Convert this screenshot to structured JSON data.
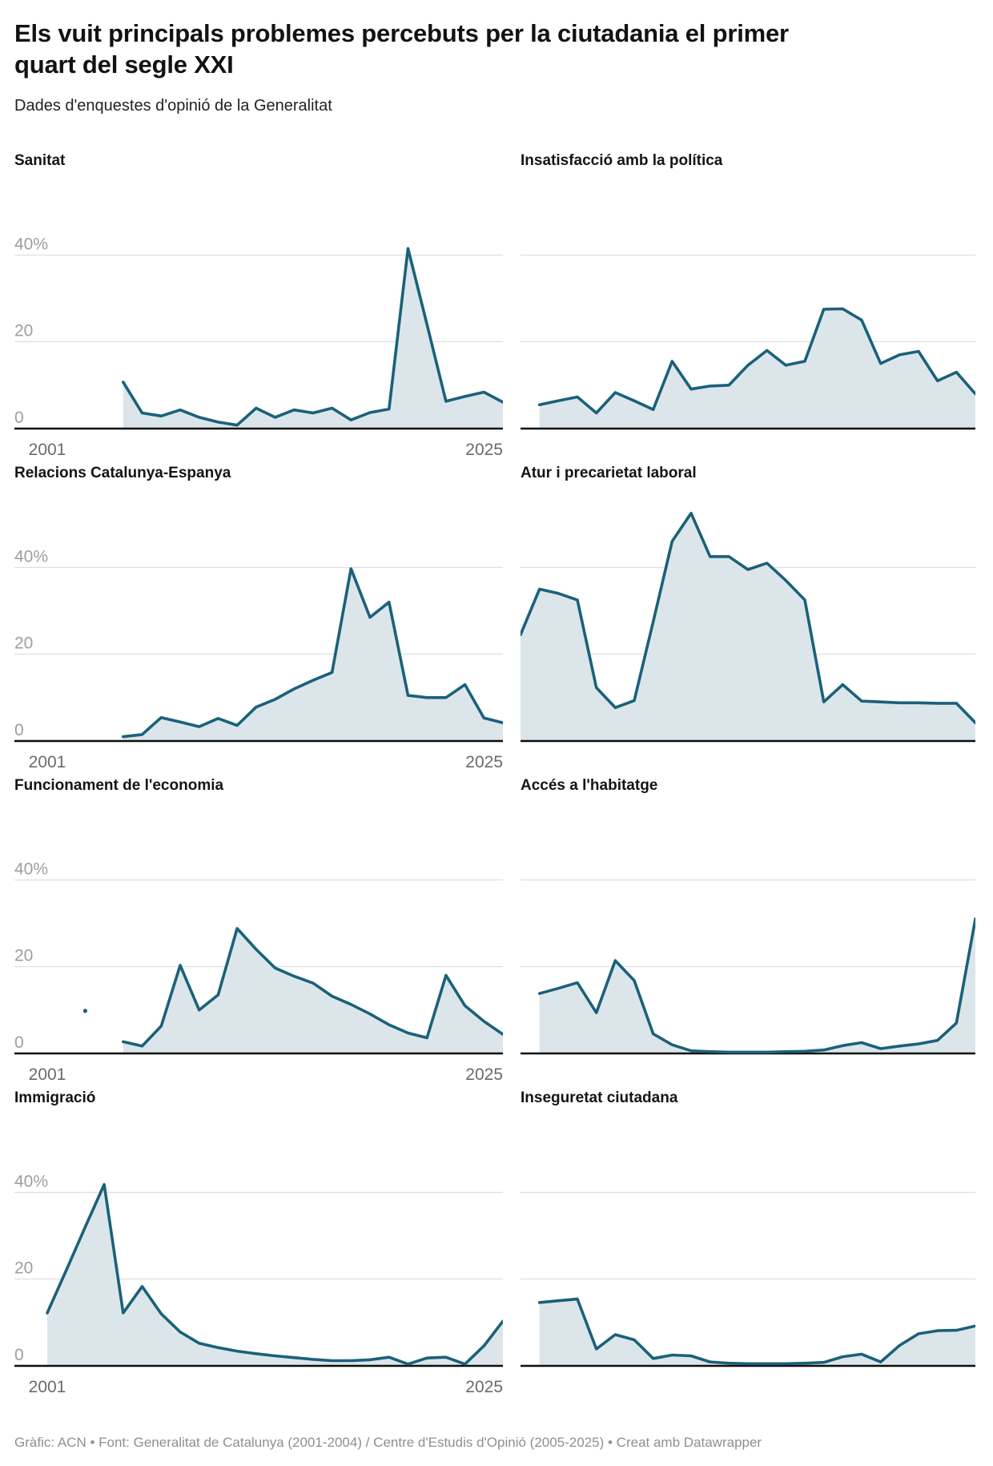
{
  "header": {
    "title": "Els vuit principals problemes percebuts per la ciutadania el primer quart del segle XXI",
    "subtitle": "Dades d'enquestes d'opinió de la Generalitat"
  },
  "footer": {
    "credit": "Gràfic: ACN • Font: Generalitat de Catalunya (2001-2004) / Centre d'Estudis d'Opinió (2005-2025) • Creat amb Datawrapper"
  },
  "colors": {
    "line": "#1a617a",
    "fill": "#dce6ea",
    "grid": "#dadada",
    "baseline": "#0d0d0d",
    "x_label_text": "#6a6a6a",
    "y_label_text": "#9e9e9e"
  },
  "axis": {
    "x_range": [
      2001,
      2025
    ],
    "x_min_label": "2001",
    "x_max_label": "2025",
    "y_gridlines": [
      0,
      20,
      40
    ],
    "y_ticks": [
      {
        "value": 40,
        "label": "40%"
      },
      {
        "value": 20,
        "label": "20"
      },
      {
        "value": 0,
        "label": "0"
      }
    ],
    "unit": "%"
  },
  "chart_data": [
    {
      "id": "sanitat",
      "type": "area",
      "title": "Sanitat",
      "column": "left",
      "show_axis_labels": true,
      "x": [
        2005,
        2006,
        2007,
        2008,
        2009,
        2010,
        2011,
        2012,
        2013,
        2014,
        2015,
        2016,
        2017,
        2018,
        2019,
        2020,
        2021,
        2022,
        2023,
        2024,
        2025
      ],
      "y": [
        10.7,
        3.6,
        2.9,
        4.3,
        2.6,
        1.5,
        0.8,
        4.7,
        2.6,
        4.3,
        3.6,
        4.7,
        2.0,
        3.7,
        4.5,
        41.5,
        24,
        6.3,
        7.4,
        8.4,
        6.1
      ]
    },
    {
      "id": "insatisfaccio-politica",
      "type": "area",
      "title": "Insatisfacció amb la política",
      "column": "right",
      "show_axis_labels": false,
      "x": [
        2002,
        2003,
        2004,
        2005,
        2006,
        2007,
        2008,
        2009,
        2010,
        2011,
        2012,
        2013,
        2014,
        2015,
        2016,
        2017,
        2018,
        2019,
        2020,
        2021,
        2022,
        2023,
        2024,
        2025
      ],
      "y": [
        5.5,
        6.4,
        7.3,
        3.6,
        8.3,
        6.4,
        4.4,
        15.5,
        9.1,
        9.8,
        10,
        14.6,
        18,
        14.6,
        15.5,
        27.5,
        27.6,
        25,
        15,
        17,
        17.8,
        11,
        13,
        8
      ]
    },
    {
      "id": "relacions-catalunya-espanya",
      "type": "area",
      "title": "Relacions Catalunya-Espanya",
      "column": "left",
      "show_axis_labels": true,
      "x": [
        2005,
        2006,
        2007,
        2008,
        2009,
        2010,
        2011,
        2012,
        2013,
        2014,
        2015,
        2016,
        2017,
        2018,
        2019,
        2020,
        2021,
        2022,
        2023,
        2024,
        2025
      ],
      "y": [
        1,
        1.5,
        5.4,
        4.4,
        3.3,
        5.2,
        3.6,
        7.8,
        9.6,
        12,
        14,
        15.8,
        39.7,
        28.5,
        32,
        10.5,
        10,
        10,
        13,
        5.3,
        4.2
      ]
    },
    {
      "id": "atur-precarietat",
      "type": "area",
      "title": "Atur i precarietat laboral",
      "column": "right",
      "show_axis_labels": false,
      "x": [
        2001,
        2002,
        2003,
        2004,
        2005,
        2006,
        2007,
        2008,
        2009,
        2010,
        2011,
        2012,
        2013,
        2014,
        2015,
        2016,
        2017,
        2018,
        2019,
        2020,
        2021,
        2022,
        2023,
        2024,
        2025
      ],
      "y": [
        24.5,
        35,
        34,
        32.5,
        12.3,
        7.7,
        9.3,
        27.5,
        46,
        52.5,
        42.5,
        42.5,
        39.5,
        41,
        37,
        32.5,
        9,
        13,
        9.2,
        9,
        8.8,
        8.8,
        8.7,
        8.7,
        4.2
      ]
    },
    {
      "id": "funcionament-economia",
      "type": "area",
      "title": "Funcionament de l'economia",
      "column": "left",
      "show_axis_labels": true,
      "x": [
        2005,
        2006,
        2007,
        2008,
        2009,
        2010,
        2011,
        2012,
        2013,
        2014,
        2015,
        2016,
        2017,
        2018,
        2019,
        2020,
        2021,
        2022,
        2023,
        2024,
        2025
      ],
      "y": [
        2.7,
        1.7,
        6.3,
        20.3,
        10,
        13.5,
        28.8,
        24,
        19.7,
        17.8,
        16.2,
        13.2,
        11.3,
        9.1,
        6.6,
        4.7,
        3.6,
        18,
        11,
        7.4,
        4.4
      ],
      "isolated_points": [
        {
          "x": 2003,
          "y": 9.8
        }
      ]
    },
    {
      "id": "acces-habitatge",
      "type": "area",
      "title": "Accés a l'habitatge",
      "column": "right",
      "show_axis_labels": false,
      "x": [
        2002,
        2003,
        2004,
        2005,
        2006,
        2007,
        2008,
        2009,
        2010,
        2011,
        2012,
        2013,
        2014,
        2015,
        2016,
        2017,
        2018,
        2019,
        2020,
        2021,
        2022,
        2023,
        2024,
        2025
      ],
      "y": [
        13.8,
        15,
        16.3,
        9.4,
        21.4,
        16.8,
        4.5,
        2,
        0.6,
        0.4,
        0.3,
        0.3,
        0.3,
        0.4,
        0.5,
        0.8,
        1.8,
        2.5,
        1.1,
        1.7,
        2.2,
        3,
        7,
        31
      ]
    },
    {
      "id": "immigracio",
      "type": "area",
      "title": "Immigració",
      "column": "left",
      "show_axis_labels": true,
      "x": [
        2001,
        2002,
        2003,
        2004,
        2005,
        2006,
        2007,
        2008,
        2009,
        2010,
        2011,
        2012,
        2013,
        2014,
        2015,
        2016,
        2017,
        2018,
        2019,
        2020,
        2021,
        2022,
        2023,
        2024,
        2025
      ],
      "y": [
        12.2,
        22,
        32,
        41.8,
        12.2,
        18.3,
        12,
        7.8,
        5.2,
        4.2,
        3.4,
        2.8,
        2.3,
        1.9,
        1.5,
        1.2,
        1.2,
        1.4,
        2,
        0.4,
        1.8,
        2,
        0.4,
        4.6,
        10.3
      ]
    },
    {
      "id": "inseguretat-ciutadana",
      "type": "area",
      "title": "Inseguretat ciutadana",
      "column": "right",
      "show_axis_labels": false,
      "x": [
        2002,
        2003,
        2004,
        2005,
        2006,
        2007,
        2008,
        2009,
        2010,
        2011,
        2012,
        2013,
        2014,
        2015,
        2016,
        2017,
        2018,
        2019,
        2020,
        2021,
        2022,
        2023,
        2024,
        2025
      ],
      "y": [
        14.6,
        15,
        15.4,
        3.9,
        7.2,
        6,
        1.7,
        2.5,
        2.3,
        0.9,
        0.6,
        0.5,
        0.5,
        0.5,
        0.6,
        0.8,
        2.1,
        2.7,
        0.9,
        4.7,
        7.4,
        8.1,
        8.2,
        9.2
      ]
    }
  ]
}
